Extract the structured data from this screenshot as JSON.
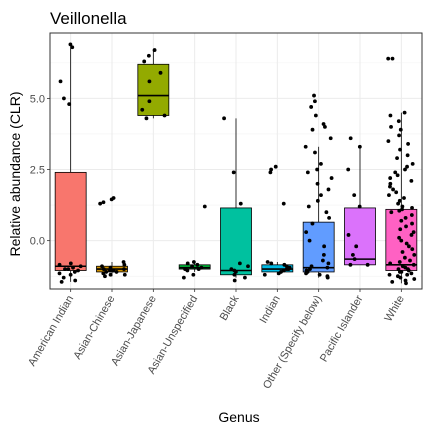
{
  "chart_data": {
    "type": "box",
    "title": "Veillonella",
    "xlabel": "Genus",
    "ylabel": "Relative abundance (CLR)",
    "ylim": [
      -1.7,
      7.3
    ],
    "yticks": [
      0.0,
      2.5,
      5.0
    ],
    "ytick_labels": [
      "0.0",
      "2.5",
      "5.0"
    ],
    "grid": true,
    "legend": "none",
    "categories": [
      "American Indian",
      "Asian-Chinese",
      "Asian-Japanese",
      "Asian-Unspecified",
      "Black",
      "Indian",
      "Other (Specify below)",
      "Pacific Islander",
      "White"
    ],
    "colors": [
      "#F8766D",
      "#D39200",
      "#93AA00",
      "#00BA38",
      "#00C19F",
      "#00B9E3",
      "#619CFF",
      "#DB72FB",
      "#FF61C3"
    ],
    "boxes": [
      {
        "category": "American Indian",
        "min": -1.45,
        "q1": -1.05,
        "median": -0.9,
        "q3": 2.4,
        "max": 6.9
      },
      {
        "category": "Asian-Chinese",
        "min": -1.25,
        "q1": -1.1,
        "median": -1.0,
        "q3": -0.9,
        "max": -0.75
      },
      {
        "category": "Asian-Japanese",
        "min": 4.3,
        "q1": 4.4,
        "median": 5.1,
        "q3": 6.2,
        "max": 6.7
      },
      {
        "category": "Asian-Unspecified",
        "min": -1.1,
        "q1": -1.0,
        "median": -0.95,
        "q3": -0.85,
        "max": -0.75
      },
      {
        "category": "Black",
        "min": -1.3,
        "q1": -1.2,
        "median": -1.05,
        "q3": 1.15,
        "max": 4.3
      },
      {
        "category": "Indian",
        "min": -1.2,
        "q1": -1.1,
        "median": -1.0,
        "q3": -0.85,
        "max": -0.75
      },
      {
        "category": "Other (Specify below)",
        "min": -1.3,
        "q1": -1.1,
        "median": -0.95,
        "q3": 0.65,
        "max": 3.3
      },
      {
        "category": "Pacific Islander",
        "min": -0.85,
        "q1": -0.85,
        "median": -0.65,
        "q3": 1.15,
        "max": 3.3
      },
      {
        "category": "White",
        "min": -1.5,
        "q1": -1.05,
        "median": -0.85,
        "q3": 1.1,
        "max": 4.5
      }
    ],
    "points": [
      {
        "category": "American Indian",
        "y": [
          6.9,
          6.8,
          5.6,
          5.0,
          4.8,
          -0.8,
          -0.85,
          -0.9,
          -0.95,
          -1.0,
          -1.0,
          -1.05,
          -1.1,
          -1.15,
          -1.2,
          -1.3,
          -1.4,
          -1.45
        ]
      },
      {
        "category": "Asian-Chinese",
        "y": [
          1.5,
          1.45,
          1.35,
          1.3,
          -0.75,
          -0.85,
          -0.9,
          -0.95,
          -1.0,
          -1.0,
          -1.05,
          -1.05,
          -1.1,
          -1.1,
          -1.15,
          -1.2,
          -1.2,
          -1.25
        ]
      },
      {
        "category": "Asian-Japanese",
        "y": [
          6.7,
          6.5,
          6.3,
          5.9,
          5.6,
          4.9,
          4.6,
          4.4,
          4.3
        ]
      },
      {
        "category": "Asian-Unspecified",
        "y": [
          1.2,
          -0.75,
          -0.8,
          -0.85,
          -0.9,
          -0.95,
          -1.0,
          -1.0,
          -1.05,
          -1.2,
          -1.3
        ]
      },
      {
        "category": "Black",
        "y": [
          4.3,
          2.4,
          1.3,
          -0.8,
          -0.9,
          -1.0,
          -1.05,
          -1.1,
          -1.2,
          -1.3,
          -1.4
        ]
      },
      {
        "category": "Indian",
        "y": [
          2.6,
          2.5,
          2.4,
          1.3,
          -0.75,
          -0.8,
          -0.85,
          -0.9,
          -0.95,
          -1.0,
          -1.0,
          -1.05,
          -1.1,
          -1.15,
          -1.2
        ]
      },
      {
        "category": "Other (Specify below)",
        "y": [
          5.1,
          4.9,
          4.7,
          4.4,
          4.1,
          4.0,
          3.9,
          3.6,
          3.3,
          3.1,
          2.7,
          2.5,
          2.4,
          2.2,
          2.0,
          1.8,
          1.6,
          1.4,
          1.2,
          1.0,
          0.8,
          0.6,
          0.3,
          0.0,
          -0.2,
          -0.5,
          -0.7,
          -0.8,
          -0.9,
          -0.95,
          -1.0,
          -1.05,
          -1.1,
          -1.15,
          -1.2,
          -1.25,
          -1.3
        ]
      },
      {
        "category": "Pacific Islander",
        "y": [
          3.6,
          3.3,
          2.5,
          1.6,
          1.2,
          0.2,
          -0.2,
          -0.5,
          -0.65,
          -0.85,
          -0.85
        ]
      },
      {
        "category": "White",
        "y": [
          6.4,
          6.4,
          4.5,
          4.4,
          4.2,
          4.0,
          3.9,
          3.7,
          3.5,
          3.4,
          3.2,
          3.0,
          2.9,
          2.7,
          2.6,
          2.5,
          2.4,
          2.3,
          2.2,
          2.1,
          2.0,
          1.9,
          1.8,
          1.7,
          1.6,
          1.5,
          1.4,
          1.3,
          1.2,
          1.15,
          1.1,
          1.05,
          1.0,
          0.9,
          0.8,
          0.7,
          0.6,
          0.5,
          0.4,
          0.3,
          0.2,
          0.1,
          0.0,
          -0.1,
          -0.2,
          -0.3,
          -0.4,
          -0.5,
          -0.6,
          -0.7,
          -0.75,
          -0.8,
          -0.85,
          -0.9,
          -0.95,
          -1.0,
          -1.0,
          -1.05,
          -1.1,
          -1.1,
          -1.15,
          -1.2,
          -1.2,
          -1.25,
          -1.3,
          -1.35,
          -1.4,
          -1.45,
          -1.5
        ]
      }
    ]
  }
}
